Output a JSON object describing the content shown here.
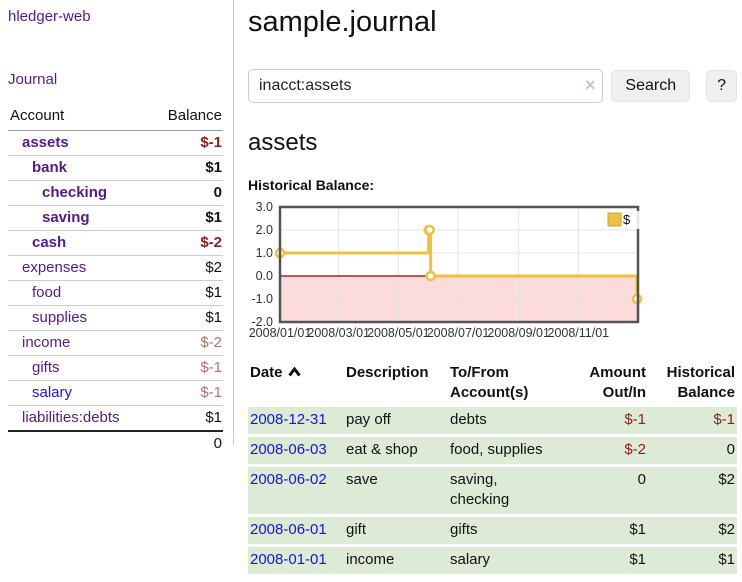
{
  "palette": {
    "link_purple": "#551a8b",
    "link_blue": "#1414e0",
    "negative_strong": "#8f1d1d",
    "negative_soft": "#bc6f6f",
    "register_row_green": "#dcead6",
    "chart_line_gold": "#edc240",
    "chart_negative_bg": "#fbdbdb",
    "chart_zero_line": "#8b0000"
  },
  "sidebar": {
    "app_title": "hledger-web",
    "nav_journal": "Journal",
    "accounts_table": {
      "headers": {
        "account": "Account",
        "balance": "Balance"
      },
      "rows": [
        {
          "name": "assets",
          "balance": "$-1",
          "level": 0,
          "bold": true,
          "name_style": "purple",
          "balance_style": "neg-strong"
        },
        {
          "name": "bank",
          "balance": "$1",
          "level": 1,
          "bold": true,
          "name_style": "purple",
          "balance_style": ""
        },
        {
          "name": "checking",
          "balance": "0",
          "level": 2,
          "bold": true,
          "name_style": "purple",
          "balance_style": ""
        },
        {
          "name": "saving",
          "balance": "$1",
          "level": 2,
          "bold": true,
          "name_style": "purple",
          "balance_style": ""
        },
        {
          "name": "cash",
          "balance": "$-2",
          "level": 1,
          "bold": true,
          "name_style": "purple",
          "balance_style": "neg-strong"
        },
        {
          "name": "expenses",
          "balance": "$2",
          "level": 0,
          "bold": false,
          "name_style": "purple",
          "balance_style": ""
        },
        {
          "name": "food",
          "balance": "$1",
          "level": 1,
          "bold": false,
          "name_style": "purple",
          "balance_style": ""
        },
        {
          "name": "supplies",
          "balance": "$1",
          "level": 1,
          "bold": false,
          "name_style": "purple",
          "balance_style": ""
        },
        {
          "name": "income",
          "balance": "$-2",
          "level": 0,
          "bold": false,
          "name_style": "purple",
          "balance_style": "neg-soft"
        },
        {
          "name": "gifts",
          "balance": "$-1",
          "level": 1,
          "bold": false,
          "name_style": "purple",
          "balance_style": "neg-soft"
        },
        {
          "name": "salary",
          "balance": "$-1",
          "level": 1,
          "bold": false,
          "name_style": "blue",
          "balance_style": "neg-soft"
        },
        {
          "name": "liabilities:debts",
          "balance": "$1",
          "level": 0,
          "bold": false,
          "name_style": "purple",
          "balance_style": ""
        }
      ],
      "total": "0"
    }
  },
  "header": {
    "title": "sample.journal"
  },
  "search": {
    "value": "inacct:assets",
    "clear_icon": "×",
    "button_label": "Search",
    "help_label": "?"
  },
  "account_page": {
    "heading": "assets",
    "chart_label": "Historical Balance:"
  },
  "chart_data": {
    "type": "line",
    "style": "step",
    "title": "Historical Balance",
    "series": [
      {
        "name": "$",
        "color": "#edc240",
        "x": [
          "2008-01-01",
          "2008-06-01",
          "2008-06-02",
          "2008-06-03",
          "2008-12-31"
        ],
        "values": [
          1,
          2,
          2,
          0,
          -1
        ]
      }
    ],
    "x_ticks": [
      "2008/01/01",
      "2008/03/01",
      "2008/05/01",
      "2008/07/01",
      "2008/09/01",
      "2008/11/01"
    ],
    "y_ticks": [
      3.0,
      2.0,
      1.0,
      0.0,
      -1.0,
      -2.0
    ],
    "xlim": [
      "2008-01-01",
      "2009-01-01"
    ],
    "ylim": [
      -2,
      3
    ],
    "grid": true,
    "legend": {
      "position": "top-right",
      "entries": [
        "$"
      ]
    },
    "negative_region_highlighted": true,
    "colors": {
      "line": "#edc240",
      "negative_bg": "#fbdbdb",
      "zero_line": "#8b0000"
    }
  },
  "register": {
    "columns": [
      "Date",
      "Description",
      "To/From Account(s)",
      "Amount Out/In",
      "Historical Balance"
    ],
    "rows": [
      {
        "date": "2008-12-31",
        "description": "pay off",
        "accounts": "debts",
        "amount": "$-1",
        "balance": "$-1",
        "amount_negative": true,
        "balance_negative": true
      },
      {
        "date": "2008-06-03",
        "description": "eat & shop",
        "accounts": "food, supplies",
        "amount": "$-2",
        "balance": "0",
        "amount_negative": true,
        "balance_negative": false
      },
      {
        "date": "2008-06-02",
        "description": "save",
        "accounts": "saving, checking",
        "amount": "0",
        "balance": "$2",
        "amount_negative": false,
        "balance_negative": false
      },
      {
        "date": "2008-06-01",
        "description": "gift",
        "accounts": "gifts",
        "amount": "$1",
        "balance": "$2",
        "amount_negative": false,
        "balance_negative": false
      },
      {
        "date": "2008-01-01",
        "description": "income",
        "accounts": "salary",
        "amount": "$1",
        "balance": "$1",
        "amount_negative": false,
        "balance_negative": false
      }
    ]
  }
}
